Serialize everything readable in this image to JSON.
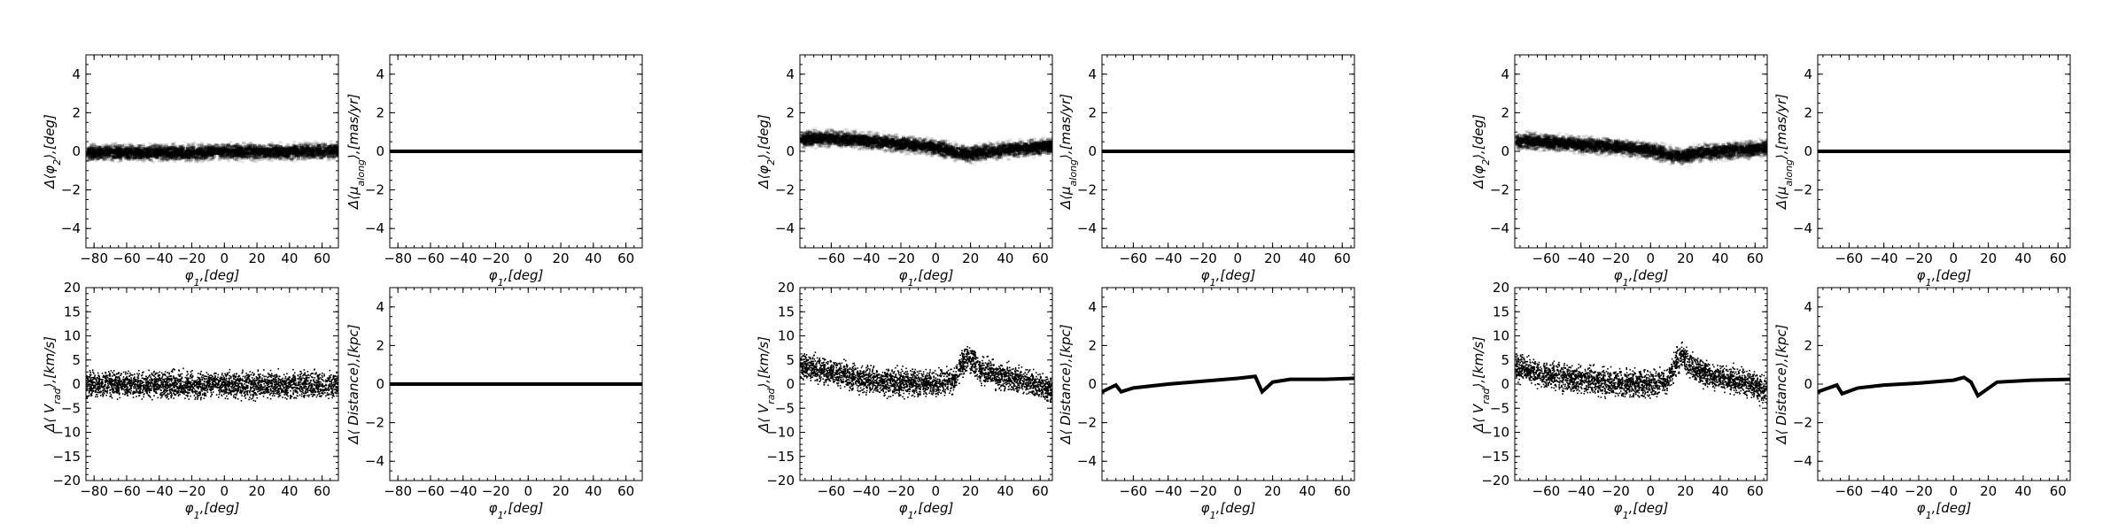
{
  "colors": {
    "axis": "#000000",
    "marker": "#000000",
    "density": "#000000"
  },
  "chart_data": [
    {
      "panel": "g1-top-left",
      "type": "heatmap",
      "xlabel": "$\\phi_1,[deg]$",
      "ylabel": "$\\Delta\\langle\\phi_2\\rangle,[deg]$",
      "xlim": [
        -85,
        70
      ],
      "ylim": [
        -5,
        5
      ],
      "xticks": [
        -80,
        -60,
        -40,
        -20,
        0,
        20,
        40,
        60
      ],
      "yticks": [
        -4,
        -2,
        0,
        2,
        4
      ],
      "grid": false,
      "legend": "none",
      "series": [
        {
          "x": [
            -80,
            -60,
            -40,
            -20,
            0,
            20,
            40,
            60,
            68
          ],
          "y": [
            0.0,
            0.0,
            0.0,
            0.0,
            0.05,
            0.05,
            0.05,
            0.1,
            0.1
          ],
          "spread": 0.35
        }
      ]
    },
    {
      "panel": "g1-top-right",
      "type": "line",
      "xlabel": "$\\phi_1,[deg]$",
      "ylabel": "$\\Delta\\langle\\mu_{along}\\rangle,[mas/yr]$",
      "xlim": [
        -85,
        70
      ],
      "ylim": [
        -5,
        5
      ],
      "xticks": [
        -80,
        -60,
        -40,
        -20,
        0,
        20,
        40,
        60
      ],
      "yticks": [
        -4,
        -2,
        0,
        2,
        4
      ],
      "grid": false,
      "legend": "none",
      "series": [
        {
          "x": [
            -85,
            70
          ],
          "y": [
            0,
            0
          ]
        }
      ]
    },
    {
      "panel": "g1-bottom-left",
      "type": "scatter",
      "xlabel": "$\\phi_1,[deg]$",
      "ylabel": "$\\Delta\\langle V_{rad}\\rangle,[km/s]$",
      "xlim": [
        -85,
        70
      ],
      "ylim": [
        -20,
        20
      ],
      "xticks": [
        -80,
        -60,
        -40,
        -20,
        0,
        20,
        40,
        60
      ],
      "yticks": [
        -20,
        -15,
        -10,
        -5,
        0,
        5,
        10,
        15,
        20
      ],
      "grid": false,
      "legend": "none",
      "series": [
        {
          "x": [
            -85,
            -60,
            -40,
            -20,
            0,
            20,
            40,
            60,
            70
          ],
          "y": [
            0,
            0,
            0,
            0,
            0,
            0,
            0,
            0,
            0
          ],
          "spread": 2.2
        }
      ]
    },
    {
      "panel": "g1-bottom-right",
      "type": "line",
      "xlabel": "$\\phi_1,[deg]$",
      "ylabel": "$\\Delta\\langle Distance\\rangle,[kpc]$",
      "xlim": [
        -85,
        70
      ],
      "ylim": [
        -5,
        5
      ],
      "xticks": [
        -80,
        -60,
        -40,
        -20,
        0,
        20,
        40,
        60
      ],
      "yticks": [
        -4,
        -2,
        0,
        2,
        4
      ],
      "grid": false,
      "legend": "none",
      "series": [
        {
          "x": [
            -85,
            70
          ],
          "y": [
            0,
            0
          ]
        }
      ]
    },
    {
      "panel": "g2-top-left",
      "type": "heatmap",
      "xlabel": "$\\phi_1,[deg]$",
      "ylabel": "$\\Delta\\langle\\phi_2\\rangle,[deg]$",
      "xlim": [
        -78,
        67
      ],
      "ylim": [
        -5,
        5
      ],
      "xticks": [
        -60,
        -40,
        -20,
        0,
        20,
        40,
        60
      ],
      "yticks": [
        -4,
        -2,
        0,
        2,
        4
      ],
      "grid": false,
      "legend": "none",
      "series": [
        {
          "x": [
            -78,
            -60,
            -40,
            -20,
            0,
            10,
            18,
            30,
            45,
            60,
            67
          ],
          "y": [
            0.7,
            0.75,
            0.6,
            0.45,
            0.25,
            0.05,
            -0.1,
            0.05,
            0.2,
            0.3,
            0.35
          ],
          "spread": 0.35
        }
      ]
    },
    {
      "panel": "g2-top-right",
      "type": "line",
      "xlabel": "$\\phi_1,[deg]$",
      "ylabel": "$\\Delta\\langle\\mu_{along}\\rangle,[mas/yr]$",
      "xlim": [
        -78,
        67
      ],
      "ylim": [
        -5,
        5
      ],
      "xticks": [
        -60,
        -40,
        -20,
        0,
        20,
        40,
        60
      ],
      "yticks": [
        -4,
        -2,
        0,
        2,
        4
      ],
      "grid": false,
      "legend": "none",
      "series": [
        {
          "x": [
            -78,
            67
          ],
          "y": [
            0,
            0
          ]
        }
      ]
    },
    {
      "panel": "g2-bottom-left",
      "type": "scatter",
      "xlabel": "$\\phi_1,[deg]$",
      "ylabel": "$\\Delta\\langle V_{rad}\\rangle,[km/s]$",
      "xlim": [
        -78,
        67
      ],
      "ylim": [
        -20,
        20
      ],
      "xticks": [
        -60,
        -40,
        -20,
        0,
        20,
        40,
        60
      ],
      "yticks": [
        -20,
        -15,
        -10,
        -5,
        0,
        5,
        10,
        15,
        20
      ],
      "grid": false,
      "legend": "none",
      "series": [
        {
          "x": [
            -78,
            -60,
            -40,
            -20,
            0,
            10,
            14,
            18,
            25,
            40,
            55,
            67
          ],
          "y": [
            4,
            2.5,
            1,
            0.5,
            0.2,
            1,
            4,
            6,
            3,
            1.5,
            0.5,
            -1.5
          ],
          "spread": 2.2
        }
      ]
    },
    {
      "panel": "g2-bottom-right",
      "type": "line",
      "xlabel": "$\\phi_1,[deg]$",
      "ylabel": "$\\Delta\\langle Distance\\rangle,[kpc]$",
      "xlim": [
        -78,
        67
      ],
      "ylim": [
        -5,
        5
      ],
      "xticks": [
        -60,
        -40,
        -20,
        0,
        20,
        40,
        60
      ],
      "yticks": [
        -4,
        -2,
        0,
        2,
        4
      ],
      "grid": false,
      "legend": "none",
      "series": [
        {
          "x": [
            -78,
            -70,
            -67,
            -60,
            -40,
            -20,
            0,
            10,
            14,
            20,
            30,
            50,
            67
          ],
          "y": [
            -0.4,
            -0.05,
            -0.4,
            -0.2,
            0.0,
            0.15,
            0.3,
            0.4,
            -0.4,
            0.1,
            0.25,
            0.25,
            0.3
          ]
        }
      ]
    },
    {
      "panel": "g3-top-left",
      "type": "heatmap",
      "xlabel": "$\\phi_1,[deg]$",
      "ylabel": "$\\Delta\\langle\\phi_2\\rangle,[deg]$",
      "xlim": [
        -78,
        67
      ],
      "ylim": [
        -5,
        5
      ],
      "xticks": [
        -60,
        -40,
        -20,
        0,
        20,
        40,
        60
      ],
      "yticks": [
        -4,
        -2,
        0,
        2,
        4
      ],
      "grid": false,
      "legend": "none",
      "series": [
        {
          "x": [
            -78,
            -60,
            -40,
            -20,
            0,
            10,
            16,
            30,
            45,
            60,
            67
          ],
          "y": [
            0.6,
            0.55,
            0.4,
            0.3,
            0.1,
            -0.1,
            -0.2,
            0.0,
            0.1,
            0.2,
            0.3
          ],
          "spread": 0.35
        }
      ]
    },
    {
      "panel": "g3-top-right",
      "type": "line",
      "xlabel": "$\\phi_1,[deg]$",
      "ylabel": "$\\Delta\\langle\\mu_{along}\\rangle,[mas/yr]$",
      "xlim": [
        -78,
        67
      ],
      "ylim": [
        -5,
        5
      ],
      "xticks": [
        -60,
        -40,
        -20,
        0,
        20,
        40,
        60
      ],
      "yticks": [
        -4,
        -2,
        0,
        2,
        4
      ],
      "grid": false,
      "legend": "none",
      "series": [
        {
          "x": [
            -78,
            67
          ],
          "y": [
            0,
            0
          ]
        }
      ]
    },
    {
      "panel": "g3-bottom-left",
      "type": "scatter",
      "xlabel": "$\\phi_1,[deg]$",
      "ylabel": "$\\Delta\\langle V_{rad}\\rangle,[km/s]$",
      "xlim": [
        -78,
        67
      ],
      "ylim": [
        -20,
        20
      ],
      "xticks": [
        -60,
        -40,
        -20,
        0,
        20,
        40,
        60
      ],
      "yticks": [
        -20,
        -15,
        -10,
        -5,
        0,
        5,
        10,
        15,
        20
      ],
      "grid": false,
      "legend": "none",
      "series": [
        {
          "x": [
            -78,
            -60,
            -40,
            -20,
            0,
            10,
            14,
            18,
            25,
            40,
            55,
            67
          ],
          "y": [
            3.5,
            2,
            1,
            0.5,
            0.2,
            1,
            4.5,
            6,
            3,
            1.5,
            0.5,
            -1.5
          ],
          "spread": 2.2
        }
      ]
    },
    {
      "panel": "g3-bottom-right",
      "type": "line",
      "xlabel": "$\\phi_1,[deg]$",
      "ylabel": "$\\Delta\\langle Distance\\rangle,[kpc]$",
      "xlim": [
        -78,
        67
      ],
      "ylim": [
        -5,
        5
      ],
      "xticks": [
        -60,
        -40,
        -20,
        0,
        20,
        40,
        60
      ],
      "yticks": [
        -4,
        -2,
        0,
        2,
        4
      ],
      "grid": false,
      "legend": "none",
      "series": [
        {
          "x": [
            -78,
            -67,
            -64,
            -55,
            -40,
            -20,
            0,
            6,
            10,
            14,
            25,
            45,
            67
          ],
          "y": [
            -0.4,
            -0.05,
            -0.5,
            -0.2,
            -0.05,
            0.05,
            0.2,
            0.35,
            0.1,
            -0.6,
            0.1,
            0.2,
            0.25
          ]
        }
      ]
    }
  ]
}
